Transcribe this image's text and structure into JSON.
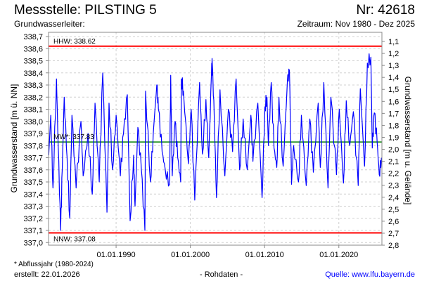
{
  "header": {
    "title": "Messstelle: PILSTING 5",
    "number": "Nr: 42618",
    "aquifer": "Grundwasserleiter:",
    "period": "Zeitraum: Nov 1980 - Dez 2025"
  },
  "footer": {
    "note": "* Abflussjahr (1980-2024)",
    "created": "erstellt:  22.01.2026",
    "datatype": "- Rohdaten -",
    "source": "Quelle: www.lfu.bayern.de"
  },
  "colors": {
    "series": "#0000ff",
    "extreme": "#ff0000",
    "mean": "#008000",
    "grid": "#d0d0d0"
  },
  "chart_data": {
    "type": "line",
    "title": "Messstelle: PILSTING 5",
    "xlabel": "",
    "ylabel": "Grundwasserstand [m ü. NN]",
    "y2label": "Grundwasserstand [m u. Gelände]",
    "xlim": [
      1980.9,
      2025.8
    ],
    "ylim": [
      337.0,
      338.7
    ],
    "y2lim": [
      1.1,
      2.8
    ],
    "grid": true,
    "x_ticks": [
      {
        "year": 1990,
        "label": "01.01.1990"
      },
      {
        "year": 2000,
        "label": "01.01.2000"
      },
      {
        "year": 2010,
        "label": "01.01.2010"
      },
      {
        "year": 2020,
        "label": "01.01.2020"
      }
    ],
    "y_ticks": [
      "338,7",
      "338,6",
      "338,5",
      "338,4",
      "338,3",
      "338,2",
      "338,1",
      "338,0",
      "337,9",
      "337,8",
      "337,7",
      "337,6",
      "337,5",
      "337,4",
      "337,3",
      "337,2",
      "337,1",
      "337,0"
    ],
    "y_tick_values": [
      338.7,
      338.6,
      338.5,
      338.4,
      338.3,
      338.2,
      338.1,
      338.0,
      337.9,
      337.8,
      337.7,
      337.6,
      337.5,
      337.4,
      337.3,
      337.2,
      337.1,
      337.0
    ],
    "y2_ticks": [
      "1,1",
      "1,2",
      "1,3",
      "1,4",
      "1,5",
      "1,6",
      "1,7",
      "1,8",
      "1,9",
      "2,0",
      "2,1",
      "2,2",
      "2,3",
      "2,4",
      "2,5",
      "2,6",
      "2,7",
      "2,8"
    ],
    "y2_tick_values": [
      1.1,
      1.2,
      1.3,
      1.4,
      1.5,
      1.6,
      1.7,
      1.8,
      1.9,
      2.0,
      2.1,
      2.2,
      2.3,
      2.4,
      2.5,
      2.6,
      2.7,
      2.8
    ],
    "reference_lines": [
      {
        "name": "HHW",
        "label": "HHW: 338.62",
        "value": 338.62,
        "color": "#ff0000"
      },
      {
        "name": "MW",
        "label": "MW*: 337.83",
        "value": 337.83,
        "color": "#008000"
      },
      {
        "name": "NNW",
        "label": "NNW: 337.08",
        "value": 337.08,
        "color": "#ff0000"
      }
    ],
    "series": [
      {
        "name": "Grundwasserstand",
        "x": [
          1980.93,
          1981.2,
          1981.5,
          1981.97,
          1982.2,
          1982.53,
          1982.75,
          1983.01,
          1983.4,
          1983.76,
          1984.05,
          1984.61,
          1985.27,
          1985.56,
          1986.22,
          1986.79,
          1987.16,
          1987.73,
          1988.2,
          1988.77,
          1989.05,
          1989.53,
          1990.0,
          1990.57,
          1991.0,
          1991.51,
          1991.89,
          1992.36,
          1992.55,
          1992.93,
          1993.4,
          1993.88,
          1993.97,
          1994.63,
          1995.0,
          1995.48,
          1995.7,
          1996.2,
          1996.62,
          1997.2,
          1997.35,
          1997.56,
          1997.94,
          1998.3,
          1998.7,
          1998.79,
          1999.07,
          1999.74,
          2000.11,
          2000.59,
          2001.25,
          2001.63,
          2002.1,
          2002.48,
          2002.85,
          2002.95,
          2003.23,
          2003.52,
          2003.99,
          2004.65,
          2005.12,
          2005.69,
          2006.16,
          2006.64,
          2007.11,
          2007.67,
          2008.15,
          2008.43,
          2009.09,
          2009.66,
          2010.04,
          2010.32,
          2010.51,
          2010.89,
          2011.27,
          2011.64,
          2011.93,
          2012.5,
          2013.06,
          2013.34,
          2013.63,
          2013.91,
          2014.57,
          2014.95,
          2015.61,
          2016.09,
          2016.56,
          2017.22,
          2017.5,
          2017.98,
          2018.54,
          2018.92,
          2019.68,
          2020.06,
          2020.62,
          2021.0,
          2021.47,
          2021.95,
          2022.61,
          2022.89,
          2023.46,
          2023.84,
          2024.31,
          2024.5,
          2024.78,
          2025.16,
          2025.44,
          2025.73
        ],
        "y": [
          337.72,
          338.05,
          337.45,
          338.35,
          337.8,
          337.1,
          337.6,
          338.2,
          337.7,
          337.2,
          338.05,
          337.45,
          338.0,
          337.55,
          337.9,
          337.4,
          338.15,
          337.5,
          338.4,
          337.25,
          338.15,
          337.6,
          338.05,
          337.55,
          337.9,
          338.22,
          337.18,
          337.72,
          337.3,
          337.95,
          337.6,
          337.1,
          338.25,
          337.5,
          337.9,
          338.3,
          338.1,
          337.75,
          337.6,
          337.48,
          338.38,
          337.55,
          338.0,
          337.7,
          337.5,
          338.35,
          338.25,
          337.65,
          338.1,
          337.35,
          338.32,
          337.73,
          338.18,
          337.7,
          338.4,
          338.48,
          338.02,
          337.37,
          338.26,
          337.55,
          338.1,
          337.75,
          338.35,
          337.6,
          338.02,
          337.6,
          338.05,
          337.67,
          338.15,
          337.37,
          338.12,
          338.2,
          337.8,
          338.32,
          337.78,
          337.62,
          338.2,
          337.63,
          338.32,
          338.42,
          337.48,
          337.8,
          337.5,
          338.05,
          337.47,
          338.02,
          337.58,
          338.15,
          337.62,
          338.32,
          337.45,
          338.2,
          337.56,
          338.1,
          337.49,
          338.17,
          337.8,
          338.08,
          337.47,
          338.27,
          337.63,
          338.48,
          338.53,
          337.78,
          338.07,
          337.83,
          337.56,
          337.7
        ]
      }
    ]
  }
}
